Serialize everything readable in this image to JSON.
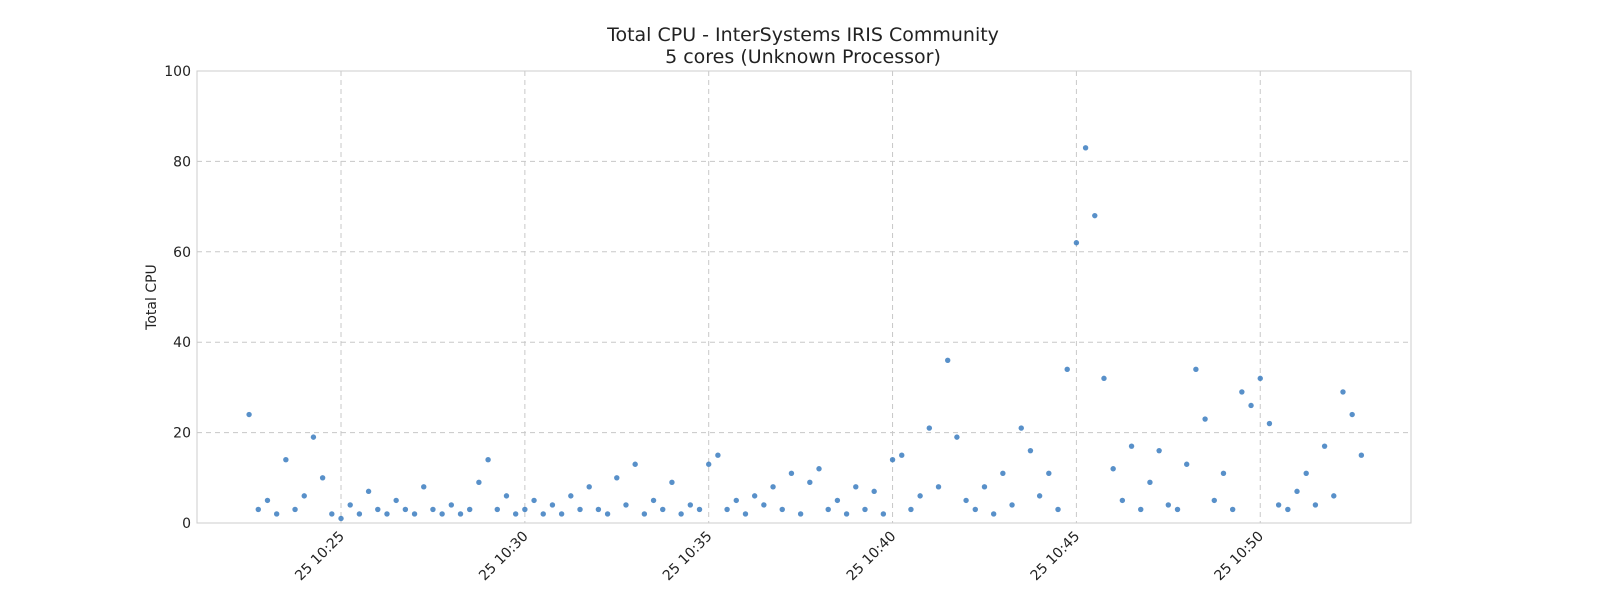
{
  "chart_data": {
    "type": "scatter",
    "title": "Total CPU - InterSystems IRIS Community",
    "subtitle": "5 cores (Unknown Processor)",
    "y_label": "Total CPU",
    "color": "#3b7dbf",
    "grid": true,
    "ylim": [
      0,
      100
    ],
    "yticks": [
      0,
      20,
      40,
      60,
      80,
      100
    ],
    "xlim": [
      "25 10:21:05",
      "25 10:54:06"
    ],
    "xticks": [
      "25 10:25",
      "25 10:30",
      "25 10:35",
      "25 10:40",
      "25 10:45",
      "25 10:50"
    ],
    "x": [
      "25 10:22:30",
      "25 10:22:45",
      "25 10:23:00",
      "25 10:23:15",
      "25 10:23:30",
      "25 10:23:45",
      "25 10:24:00",
      "25 10:24:15",
      "25 10:24:30",
      "25 10:24:45",
      "25 10:25:00",
      "25 10:25:15",
      "25 10:25:30",
      "25 10:25:45",
      "25 10:26:00",
      "25 10:26:15",
      "25 10:26:30",
      "25 10:26:45",
      "25 10:27:00",
      "25 10:27:15",
      "25 10:27:30",
      "25 10:27:45",
      "25 10:28:00",
      "25 10:28:15",
      "25 10:28:30",
      "25 10:28:45",
      "25 10:29:00",
      "25 10:29:15",
      "25 10:29:30",
      "25 10:29:45",
      "25 10:30:00",
      "25 10:30:15",
      "25 10:30:30",
      "25 10:30:45",
      "25 10:31:00",
      "25 10:31:15",
      "25 10:31:30",
      "25 10:31:45",
      "25 10:32:00",
      "25 10:32:15",
      "25 10:32:30",
      "25 10:32:45",
      "25 10:33:00",
      "25 10:33:15",
      "25 10:33:30",
      "25 10:33:45",
      "25 10:34:00",
      "25 10:34:15",
      "25 10:34:30",
      "25 10:34:45",
      "25 10:35:00",
      "25 10:35:15",
      "25 10:35:30",
      "25 10:35:45",
      "25 10:36:00",
      "25 10:36:15",
      "25 10:36:30",
      "25 10:36:45",
      "25 10:37:00",
      "25 10:37:15",
      "25 10:37:30",
      "25 10:37:45",
      "25 10:38:00",
      "25 10:38:15",
      "25 10:38:30",
      "25 10:38:45",
      "25 10:39:00",
      "25 10:39:15",
      "25 10:39:30",
      "25 10:39:45",
      "25 10:40:00",
      "25 10:40:15",
      "25 10:40:30",
      "25 10:40:45",
      "25 10:41:00",
      "25 10:41:15",
      "25 10:41:30",
      "25 10:41:45",
      "25 10:42:00",
      "25 10:42:15",
      "25 10:42:30",
      "25 10:42:45",
      "25 10:43:00",
      "25 10:43:15",
      "25 10:43:30",
      "25 10:43:45",
      "25 10:44:00",
      "25 10:44:15",
      "25 10:44:30",
      "25 10:44:45",
      "25 10:45:00",
      "25 10:45:15",
      "25 10:45:30",
      "25 10:45:45",
      "25 10:46:00",
      "25 10:46:15",
      "25 10:46:30",
      "25 10:46:45",
      "25 10:47:00",
      "25 10:47:15",
      "25 10:47:30",
      "25 10:47:45",
      "25 10:48:00",
      "25 10:48:15",
      "25 10:48:30",
      "25 10:48:45",
      "25 10:49:00",
      "25 10:49:15",
      "25 10:49:30",
      "25 10:49:45",
      "25 10:50:00",
      "25 10:50:15",
      "25 10:50:30",
      "25 10:50:45",
      "25 10:51:00",
      "25 10:51:15",
      "25 10:51:30",
      "25 10:51:45",
      "25 10:52:00",
      "25 10:52:15",
      "25 10:52:30",
      "25 10:52:45"
    ],
    "values": [
      24,
      3,
      5,
      2,
      14,
      3,
      6,
      19,
      10,
      2,
      1,
      4,
      2,
      7,
      3,
      2,
      5,
      3,
      2,
      8,
      3,
      2,
      4,
      2,
      3,
      9,
      14,
      3,
      6,
      2,
      3,
      5,
      2,
      4,
      2,
      6,
      3,
      8,
      3,
      2,
      10,
      4,
      13,
      2,
      5,
      3,
      9,
      2,
      4,
      3,
      13,
      15,
      3,
      5,
      2,
      6,
      4,
      8,
      3,
      11,
      2,
      9,
      12,
      3,
      5,
      2,
      8,
      3,
      7,
      2,
      14,
      15,
      3,
      6,
      21,
      8,
      36,
      19,
      5,
      3,
      8,
      2,
      11,
      4,
      21,
      16,
      6,
      11,
      3,
      34,
      62,
      83,
      68,
      32,
      12,
      5,
      17,
      3,
      9,
      16,
      4,
      3,
      13,
      34,
      23,
      5,
      11,
      3,
      29,
      26,
      32,
      22,
      4,
      3,
      7,
      11,
      4,
      17,
      6,
      29,
      24,
      15
    ]
  }
}
